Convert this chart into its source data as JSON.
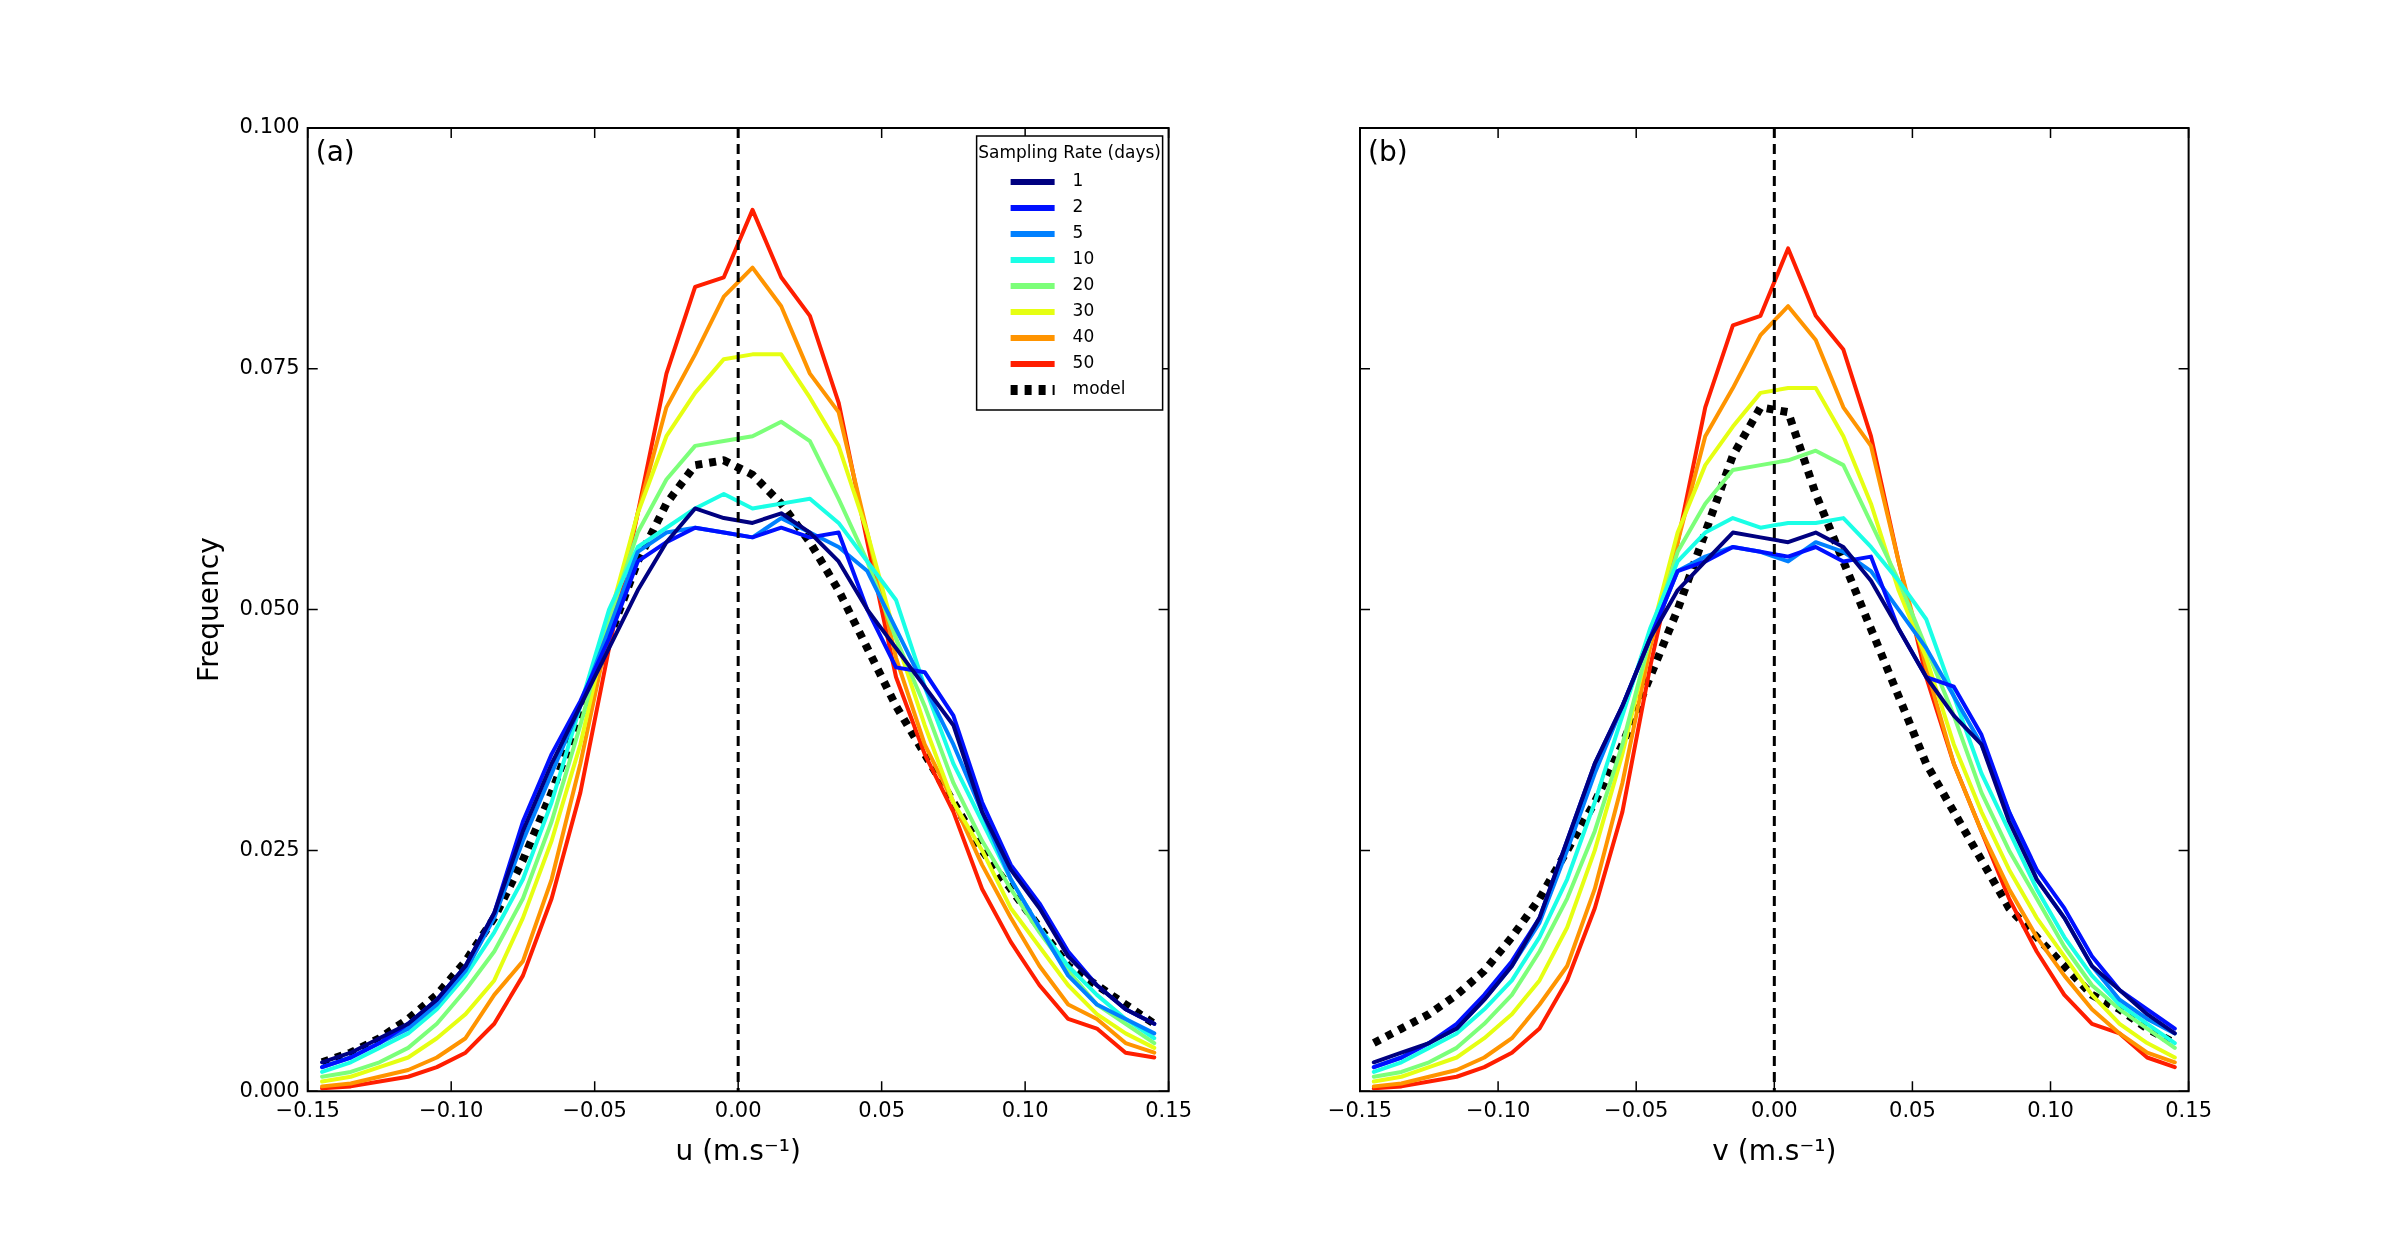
{
  "chart_data": [
    {
      "type": "line",
      "ylabel": "Frequency",
      "xlabel": "u (m.s⁻¹)",
      "legend_title": "Sampling Rate (days)",
      "legend": "top right",
      "grid": false,
      "annotations": [
        "(a)"
      ],
      "x": [
        -0.145,
        -0.135,
        -0.125,
        -0.115,
        -0.105,
        -0.095,
        -0.085,
        -0.075,
        -0.065,
        -0.055,
        -0.045,
        -0.035,
        -0.025,
        -0.015,
        -0.005,
        0.005,
        0.015,
        0.025,
        0.035,
        0.045,
        0.055,
        0.065,
        0.075,
        0.085,
        0.095,
        0.105,
        0.115,
        0.125,
        0.135,
        0.145
      ],
      "xlim": [
        -0.15,
        0.15
      ],
      "xticks": [
        {
          "value": -0.15,
          "label": "−0.15"
        },
        {
          "value": -0.1,
          "label": "−0.10"
        },
        {
          "value": -0.05,
          "label": "−0.05"
        },
        {
          "value": 0,
          "label": "0.00"
        },
        {
          "value": 0.05,
          "label": "0.05"
        },
        {
          "value": 0.1,
          "label": "0.10"
        },
        {
          "value": 0.15,
          "label": "0.15"
        }
      ],
      "ylim": [
        0,
        0.1
      ],
      "yticks": [
        {
          "value": 0,
          "label": "0.000"
        },
        {
          "value": 0.025,
          "label": "0.025"
        },
        {
          "value": 0.05,
          "label": "0.050"
        },
        {
          "value": 0.075,
          "label": "0.075"
        },
        {
          "value": 0.1,
          "label": "0.100"
        }
      ],
      "ref_lines": [
        {
          "axis": "x",
          "value": 0,
          "color": "#000000",
          "line_style": "dashed"
        }
      ],
      "series": [
        {
          "name": "1",
          "color": "#000080",
          "line_style": "solid",
          "values": [
            0.003,
            0.004,
            0.0055,
            0.007,
            0.0095,
            0.013,
            0.0185,
            0.027,
            0.034,
            0.04,
            0.046,
            0.052,
            0.057,
            0.0605,
            0.0595,
            0.059,
            0.06,
            0.058,
            0.055,
            0.05,
            0.046,
            0.042,
            0.038,
            0.029,
            0.023,
            0.019,
            0.014,
            0.011,
            0.0085,
            0.007
          ]
        },
        {
          "name": "2",
          "color": "#0010ff",
          "line_style": "solid",
          "values": [
            0.0025,
            0.0035,
            0.005,
            0.007,
            0.0095,
            0.013,
            0.0185,
            0.028,
            0.035,
            0.0405,
            0.047,
            0.055,
            0.057,
            0.0585,
            0.058,
            0.0575,
            0.0585,
            0.0575,
            0.058,
            0.05,
            0.044,
            0.0435,
            0.039,
            0.03,
            0.0235,
            0.0195,
            0.0145,
            0.011,
            0.0085,
            0.007
          ]
        },
        {
          "name": "5",
          "color": "#0080ff",
          "line_style": "solid",
          "values": [
            0.0025,
            0.0035,
            0.005,
            0.0065,
            0.009,
            0.0125,
            0.018,
            0.026,
            0.033,
            0.04,
            0.048,
            0.056,
            0.058,
            0.0585,
            0.058,
            0.0575,
            0.0595,
            0.058,
            0.0565,
            0.054,
            0.048,
            0.042,
            0.036,
            0.029,
            0.022,
            0.017,
            0.012,
            0.009,
            0.0075,
            0.006
          ]
        },
        {
          "name": "10",
          "color": "#1affe6",
          "line_style": "solid",
          "values": [
            0.002,
            0.003,
            0.0045,
            0.006,
            0.0085,
            0.012,
            0.0165,
            0.022,
            0.03,
            0.04,
            0.05,
            0.0565,
            0.0585,
            0.0605,
            0.062,
            0.0605,
            0.061,
            0.0615,
            0.059,
            0.055,
            0.051,
            0.042,
            0.034,
            0.028,
            0.022,
            0.017,
            0.013,
            0.01,
            0.0075,
            0.0055
          ]
        },
        {
          "name": "20",
          "color": "#7cff79",
          "line_style": "solid",
          "values": [
            0.0015,
            0.002,
            0.003,
            0.0045,
            0.007,
            0.0105,
            0.0145,
            0.02,
            0.028,
            0.038,
            0.049,
            0.058,
            0.0635,
            0.067,
            0.0675,
            0.068,
            0.0695,
            0.0675,
            0.0615,
            0.055,
            0.047,
            0.04,
            0.032,
            0.026,
            0.021,
            0.0165,
            0.0125,
            0.009,
            0.007,
            0.005
          ]
        },
        {
          "name": "30",
          "color": "#e6ff12",
          "line_style": "solid",
          "values": [
            0.001,
            0.0015,
            0.0025,
            0.0035,
            0.0055,
            0.008,
            0.0115,
            0.018,
            0.026,
            0.036,
            0.049,
            0.06,
            0.068,
            0.0725,
            0.076,
            0.0765,
            0.0765,
            0.072,
            0.067,
            0.058,
            0.047,
            0.038,
            0.03,
            0.025,
            0.019,
            0.015,
            0.011,
            0.008,
            0.006,
            0.0045
          ]
        },
        {
          "name": "40",
          "color": "#ff9400",
          "line_style": "solid",
          "values": [
            0.0005,
            0.0008,
            0.0015,
            0.0022,
            0.0035,
            0.0055,
            0.01,
            0.0135,
            0.022,
            0.034,
            0.048,
            0.06,
            0.071,
            0.0765,
            0.0825,
            0.0855,
            0.0815,
            0.0745,
            0.0705,
            0.058,
            0.045,
            0.036,
            0.03,
            0.0235,
            0.018,
            0.013,
            0.009,
            0.0075,
            0.005,
            0.004
          ]
        },
        {
          "name": "50",
          "color": "#ff1e00",
          "line_style": "solid",
          "values": [
            0.0003,
            0.0005,
            0.001,
            0.0015,
            0.0025,
            0.004,
            0.007,
            0.012,
            0.02,
            0.031,
            0.046,
            0.06,
            0.0745,
            0.0835,
            0.0845,
            0.0915,
            0.0845,
            0.0805,
            0.0715,
            0.057,
            0.043,
            0.035,
            0.029,
            0.021,
            0.0155,
            0.011,
            0.0075,
            0.0065,
            0.004,
            0.0035
          ]
        },
        {
          "name": "model",
          "color": "#000000",
          "line_style": "dotted",
          "values": [
            0.003,
            0.004,
            0.0055,
            0.0075,
            0.01,
            0.0135,
            0.018,
            0.024,
            0.031,
            0.039,
            0.047,
            0.055,
            0.061,
            0.065,
            0.0655,
            0.064,
            0.061,
            0.057,
            0.052,
            0.046,
            0.04,
            0.035,
            0.03,
            0.025,
            0.021,
            0.017,
            0.013,
            0.011,
            0.009,
            0.007
          ]
        }
      ]
    },
    {
      "type": "line",
      "xlabel": "v (m.s⁻¹)",
      "grid": false,
      "annotations": [
        "(b)"
      ],
      "tick_labels": "x",
      "x": [
        -0.145,
        -0.135,
        -0.125,
        -0.115,
        -0.105,
        -0.095,
        -0.085,
        -0.075,
        -0.065,
        -0.055,
        -0.045,
        -0.035,
        -0.025,
        -0.015,
        -0.005,
        0.005,
        0.015,
        0.025,
        0.035,
        0.045,
        0.055,
        0.065,
        0.075,
        0.085,
        0.095,
        0.105,
        0.115,
        0.125,
        0.135,
        0.145
      ],
      "xlim": [
        -0.15,
        0.15
      ],
      "xticks": [
        {
          "value": -0.15,
          "label": "−0.15"
        },
        {
          "value": -0.1,
          "label": "−0.10"
        },
        {
          "value": -0.05,
          "label": "−0.05"
        },
        {
          "value": 0,
          "label": "0.00"
        },
        {
          "value": 0.05,
          "label": "0.05"
        },
        {
          "value": 0.1,
          "label": "0.10"
        },
        {
          "value": 0.15,
          "label": "0.15"
        }
      ],
      "ylim": [
        0,
        0.1
      ],
      "yticks": [
        {
          "value": 0,
          "label": null
        },
        {
          "value": 0.025,
          "label": null
        },
        {
          "value": 0.05,
          "label": null
        },
        {
          "value": 0.075,
          "label": null
        },
        {
          "value": 0.1,
          "label": null
        }
      ],
      "ref_lines": [
        {
          "axis": "x",
          "value": 0,
          "color": "#000000",
          "line_style": "dashed"
        }
      ],
      "series": [
        {
          "color": "#000080",
          "line_style": "solid",
          "values": [
            0.003,
            0.004,
            0.005,
            0.0065,
            0.0095,
            0.013,
            0.018,
            0.026,
            0.034,
            0.04,
            0.047,
            0.052,
            0.055,
            0.058,
            0.0575,
            0.057,
            0.058,
            0.0565,
            0.053,
            0.048,
            0.043,
            0.039,
            0.036,
            0.028,
            0.022,
            0.018,
            0.013,
            0.0105,
            0.008,
            0.006
          ]
        },
        {
          "color": "#0010ff",
          "line_style": "solid",
          "values": [
            0.0025,
            0.0035,
            0.005,
            0.007,
            0.01,
            0.0135,
            0.018,
            0.026,
            0.034,
            0.04,
            0.047,
            0.054,
            0.055,
            0.0565,
            0.056,
            0.0555,
            0.0565,
            0.055,
            0.0555,
            0.048,
            0.043,
            0.042,
            0.037,
            0.029,
            0.023,
            0.019,
            0.014,
            0.0105,
            0.0085,
            0.0065
          ]
        },
        {
          "color": "#0080ff",
          "line_style": "solid",
          "values": [
            0.0025,
            0.0035,
            0.005,
            0.0065,
            0.0095,
            0.013,
            0.0175,
            0.025,
            0.033,
            0.04,
            0.047,
            0.054,
            0.0555,
            0.0565,
            0.056,
            0.055,
            0.057,
            0.056,
            0.054,
            0.05,
            0.046,
            0.041,
            0.036,
            0.029,
            0.022,
            0.018,
            0.013,
            0.0095,
            0.0075,
            0.006
          ]
        },
        {
          "color": "#1affe6",
          "line_style": "solid",
          "values": [
            0.002,
            0.003,
            0.0045,
            0.006,
            0.0085,
            0.0115,
            0.016,
            0.022,
            0.03,
            0.039,
            0.048,
            0.055,
            0.058,
            0.0595,
            0.0585,
            0.059,
            0.059,
            0.0595,
            0.0565,
            0.053,
            0.049,
            0.041,
            0.033,
            0.027,
            0.021,
            0.016,
            0.012,
            0.009,
            0.007,
            0.005
          ]
        },
        {
          "color": "#7cff79",
          "line_style": "solid",
          "values": [
            0.0015,
            0.002,
            0.003,
            0.0045,
            0.007,
            0.01,
            0.0145,
            0.02,
            0.027,
            0.036,
            0.047,
            0.056,
            0.061,
            0.0645,
            0.065,
            0.0655,
            0.0665,
            0.065,
            0.059,
            0.053,
            0.046,
            0.039,
            0.031,
            0.025,
            0.02,
            0.015,
            0.011,
            0.0085,
            0.0065,
            0.0045
          ]
        },
        {
          "color": "#e6ff12",
          "line_style": "solid",
          "values": [
            0.001,
            0.0015,
            0.0025,
            0.0035,
            0.0055,
            0.008,
            0.0115,
            0.017,
            0.025,
            0.035,
            0.047,
            0.058,
            0.065,
            0.069,
            0.0725,
            0.073,
            0.073,
            0.068,
            0.061,
            0.052,
            0.045,
            0.036,
            0.029,
            0.023,
            0.018,
            0.014,
            0.01,
            0.007,
            0.005,
            0.0035
          ]
        },
        {
          "color": "#ff9400",
          "line_style": "solid",
          "values": [
            0.0005,
            0.0008,
            0.0015,
            0.0022,
            0.0035,
            0.0055,
            0.009,
            0.013,
            0.021,
            0.032,
            0.046,
            0.057,
            0.068,
            0.073,
            0.0785,
            0.0815,
            0.078,
            0.071,
            0.067,
            0.055,
            0.044,
            0.034,
            0.027,
            0.021,
            0.016,
            0.012,
            0.0085,
            0.006,
            0.004,
            0.003
          ]
        },
        {
          "color": "#ff1e00",
          "line_style": "solid",
          "values": [
            0.0003,
            0.0005,
            0.001,
            0.0015,
            0.0025,
            0.004,
            0.0065,
            0.0115,
            0.019,
            0.029,
            0.044,
            0.057,
            0.071,
            0.0795,
            0.0805,
            0.0875,
            0.0805,
            0.077,
            0.068,
            0.055,
            0.043,
            0.034,
            0.027,
            0.02,
            0.0145,
            0.01,
            0.007,
            0.006,
            0.0035,
            0.0025
          ]
        },
        {
          "color": "#000000",
          "line_style": "dotted",
          "values": [
            0.005,
            0.0065,
            0.008,
            0.01,
            0.0125,
            0.016,
            0.02,
            0.025,
            0.03,
            0.036,
            0.043,
            0.05,
            0.058,
            0.066,
            0.071,
            0.0705,
            0.062,
            0.055,
            0.048,
            0.041,
            0.034,
            0.029,
            0.024,
            0.019,
            0.016,
            0.013,
            0.01,
            0.0085,
            0.0065,
            0.005
          ]
        }
      ]
    }
  ]
}
